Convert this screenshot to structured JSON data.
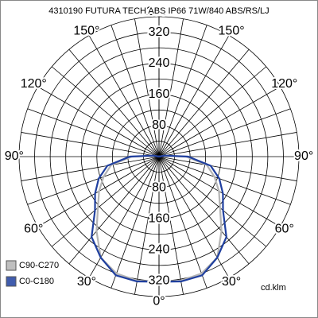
{
  "chart_data": {
    "type": "polar",
    "title": "4310190 FUTURA TECH ABS IP66 71W/840 ABS/RS/LJ",
    "unit": "cd.klm",
    "angles": [
      0,
      10,
      20,
      30,
      40,
      50,
      60,
      70,
      80,
      90,
      100,
      110,
      120,
      130,
      140,
      150,
      160,
      170,
      180
    ],
    "series": [
      {
        "name": "C90-C270",
        "color": "#b4b4b4",
        "values": [
          322,
          324,
          320,
          300,
          250,
          205,
          178,
          152,
          125,
          70,
          12,
          0,
          0,
          0,
          0,
          0,
          0,
          0,
          0
        ]
      },
      {
        "name": "C0-C180",
        "color": "#1f3f9f",
        "values": [
          322,
          326,
          325,
          300,
          270,
          215,
          190,
          165,
          135,
          75,
          15,
          0,
          0,
          0,
          0,
          0,
          0,
          0,
          0
        ]
      }
    ],
    "rlim": [
      0,
      360
    ],
    "rticks": [
      80,
      160,
      240,
      320
    ],
    "rgrid": [
      40,
      80,
      120,
      160,
      200,
      240,
      280,
      320,
      360
    ],
    "aticks": [
      {
        "value": 0,
        "label": "0°"
      },
      {
        "value": 30,
        "label": "30°"
      },
      {
        "value": 60,
        "label": "60°"
      },
      {
        "value": 90,
        "label": "90°"
      },
      {
        "value": 120,
        "label": "120°"
      },
      {
        "value": 150,
        "label": "150°"
      },
      {
        "value": 180,
        "label": "180°"
      }
    ],
    "legend": "bottom-left"
  }
}
